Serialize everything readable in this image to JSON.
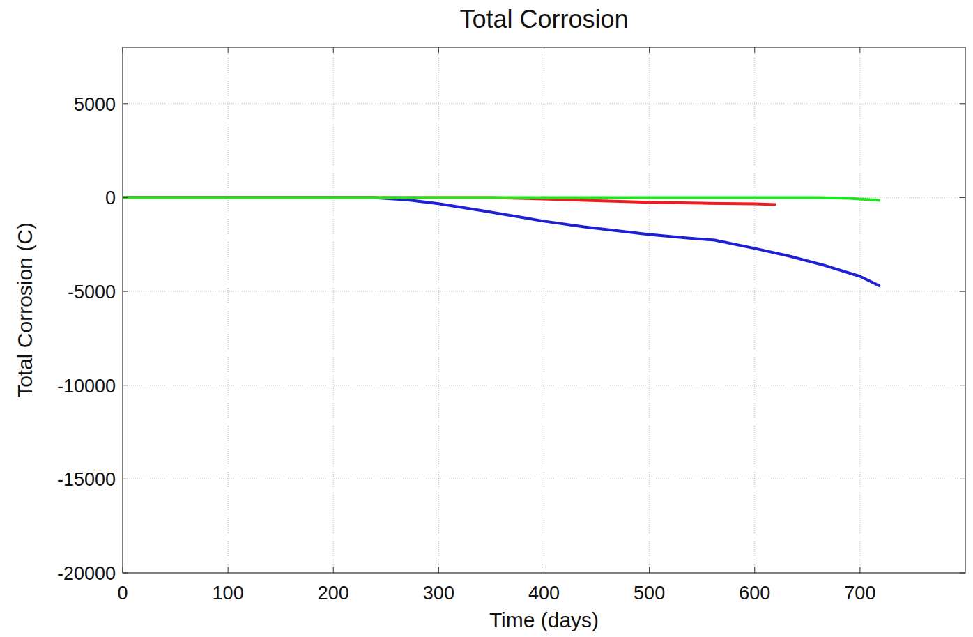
{
  "chart_data": {
    "type": "line",
    "title": "Total Corrosion",
    "x_label": "Time (days)",
    "y_label": "Total Corrosion (C)",
    "xlim": [
      0,
      800
    ],
    "xticks": [
      0,
      100,
      200,
      300,
      400,
      500,
      600,
      700
    ],
    "ylim": [
      -20000,
      8000
    ],
    "yticks": [
      -20000,
      -15000,
      -10000,
      -5000,
      0,
      5000
    ],
    "grid": true,
    "series": [
      {
        "color": "#1f1fd6",
        "x": [
          0,
          100,
          200,
          237,
          270,
          300,
          341,
          400,
          438,
          500,
          536,
          562,
          600,
          633,
          666,
          700,
          719
        ],
        "values": [
          0,
          0,
          0,
          0,
          -120,
          -330,
          -700,
          -1260,
          -1560,
          -1970,
          -2160,
          -2270,
          -2710,
          -3120,
          -3610,
          -4200,
          -4720
        ]
      },
      {
        "color": "#ee1c1c",
        "x": [
          0,
          350,
          400,
          450,
          500,
          550,
          600,
          620
        ],
        "values": [
          0,
          0,
          -80,
          -170,
          -250,
          -300,
          -340,
          -370
        ]
      },
      {
        "color": "#1ee61e",
        "x": [
          0,
          600,
          660,
          690,
          719
        ],
        "values": [
          0,
          0,
          0,
          -40,
          -150
        ]
      }
    ]
  }
}
